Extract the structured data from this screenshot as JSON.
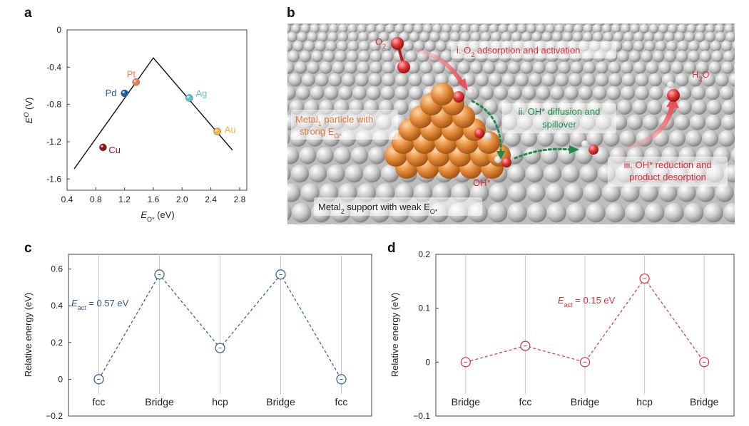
{
  "panels": {
    "a": {
      "letter": "a"
    },
    "b": {
      "letter": "b"
    },
    "c": {
      "letter": "c"
    },
    "d": {
      "letter": "d"
    }
  },
  "chart_data": [
    {
      "panel": "a",
      "type": "scatter",
      "title": "",
      "xlabel": "E_O* (eV)",
      "ylabel": "E^0 (V)",
      "xlim": [
        0.4,
        2.9
      ],
      "ylim": [
        -1.72,
        0
      ],
      "xticks": [
        0.4,
        0.8,
        1.2,
        1.6,
        2.0,
        2.4,
        2.8
      ],
      "xtick_labels": [
        "0.4",
        "0.8",
        "1.2",
        "1.6",
        "2.0",
        "2.4",
        "2.8"
      ],
      "yticks": [
        0,
        -0.4,
        -0.8,
        -1.2,
        -1.6
      ],
      "ytick_labels": [
        "0",
        "-0.4",
        "-0.8",
        "-1.2",
        "-1.6"
      ],
      "volcano_line": {
        "x": [
          0.5,
          1.6,
          2.7
        ],
        "y": [
          -1.49,
          -0.3,
          -1.29
        ]
      },
      "points": [
        {
          "label": "Pt",
          "x": 1.36,
          "y": -0.56,
          "color": "#f07c4e"
        },
        {
          "label": "Pd",
          "x": 1.2,
          "y": -0.68,
          "color": "#1e5fa8"
        },
        {
          "label": "Ag",
          "x": 2.1,
          "y": -0.73,
          "color": "#5bc2c6"
        },
        {
          "label": "Au",
          "x": 2.49,
          "y": -1.09,
          "color": "#f2b53a"
        },
        {
          "label": "Cu",
          "x": 0.9,
          "y": -1.26,
          "color": "#8a1515"
        }
      ]
    },
    {
      "panel": "c",
      "type": "line",
      "title": "",
      "xlabel": "",
      "ylabel": "Relative energy (eV)",
      "categories": [
        "fcc",
        "Bridge",
        "hcp",
        "Bridge",
        "fcc"
      ],
      "values": [
        0,
        0.57,
        0.17,
        0.57,
        0
      ],
      "ylim": [
        -0.2,
        0.68
      ],
      "yticks": [
        -0.2,
        0,
        0.2,
        0.4,
        0.6
      ],
      "ytick_labels": [
        "−0.2",
        "0",
        "0.2",
        "0.4",
        "0.6"
      ],
      "color": "#2d5c8a",
      "annotation": {
        "symbol": "E",
        "sub": "act",
        "text": " = 0.57 eV"
      }
    },
    {
      "panel": "d",
      "type": "line",
      "title": "",
      "xlabel": "",
      "ylabel": "Relative energy (eV)",
      "categories": [
        "Bridge",
        "fcc",
        "Bridge",
        "hcp",
        "Bridge"
      ],
      "values": [
        0,
        0.03,
        0,
        0.155,
        0
      ],
      "ylim": [
        -0.1,
        0.2
      ],
      "yticks": [
        -0.1,
        0,
        0.1,
        0.2
      ],
      "ytick_labels": [
        "−0.1",
        "0",
        "0.1",
        "0.2"
      ],
      "color": "#d8313a",
      "annotation": {
        "symbol": "E",
        "sub": "act",
        "text": " = 0.15 eV"
      }
    }
  ],
  "illustration_b": {
    "o2_label": "O",
    "o2_sub": "2",
    "step1_prefix": "i. O",
    "step1_sub": "2",
    "step1_suffix": " adsorption and activation",
    "step2_line1": "ii. OH* diffusion and",
    "step2_line2": "spillover",
    "step3_line1": "iii. OH* reduction and",
    "step3_line2": "product desorption",
    "metal1_line1_prefix": "Metal",
    "metal1_line1_sub": "1",
    "metal1_line1_suffix": " particle with",
    "metal1_line2_prefix": "strong E",
    "metal1_line2_sub": "O*",
    "ohstar_label": "OH*",
    "h2o_prefix": "H",
    "h2o_sub": "2",
    "h2o_suffix": "O",
    "support_prefix": "Metal",
    "support_sub": "2",
    "support_suffix": " support with weak E",
    "support_sub2": "O*",
    "colors": {
      "red_text": "#d8313a",
      "green_text": "#1f8a4c",
      "orange_text": "#e07a3a",
      "particle": "#e38b3c",
      "support": "#c9c9c9"
    }
  }
}
